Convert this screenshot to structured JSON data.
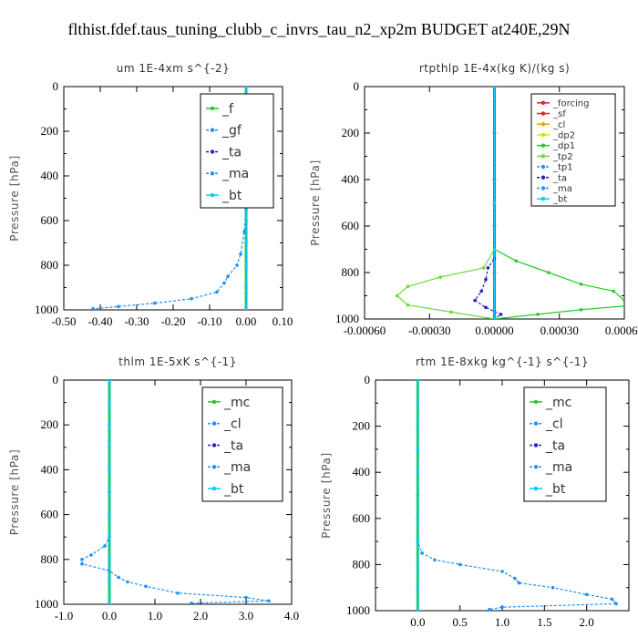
{
  "figure_title": "flthist.fdef.taus_tuning_clubb_c_invrs_tau_n2_xp2m  BUDGET at240E,29N",
  "colors": {
    "green": "#22cc22",
    "blue_dash": "#1e90ff",
    "navy": "#2222cc",
    "red": "#dd2222",
    "orange": "#ff9900",
    "yellow": "#dddd00",
    "cyan": "#00ccff",
    "light_green": "#66dd33"
  },
  "chart_data": [
    {
      "type": "line",
      "title": "um   1E-4xm s^{-2}",
      "ylabel": "Pressure [hPa]",
      "xlim": [
        -0.5,
        0.1
      ],
      "ylim": [
        1000,
        0
      ],
      "xticks": [
        "-0.50",
        "-0.40",
        "-0.30",
        "-0.20",
        "-0.10",
        "0.00",
        "0.10"
      ],
      "xtick_values": [
        -0.5,
        -0.4,
        -0.3,
        -0.2,
        -0.1,
        0.0,
        0.1
      ],
      "yticks": [
        "0",
        "200",
        "400",
        "600",
        "800",
        "1000"
      ],
      "ytick_values": [
        0,
        200,
        400,
        600,
        800,
        1000
      ],
      "legend": {
        "placement": "top-right",
        "font_size": 14,
        "entries": [
          "_f",
          "_gf",
          "_ta",
          "_ma",
          "_bt"
        ]
      },
      "series": [
        {
          "name": "_f",
          "color": "#22cc22",
          "style": "solid",
          "y": [
            0,
            100,
            200,
            300,
            400,
            500,
            600,
            700,
            800,
            900,
            1000
          ],
          "x": [
            0,
            0,
            0,
            0,
            0,
            0,
            0,
            0,
            0,
            0,
            0
          ]
        },
        {
          "name": "_gf",
          "color": "#1e90ff",
          "style": "dashed",
          "y": [
            0,
            400,
            550,
            650,
            750,
            800,
            850,
            880,
            920,
            950,
            970,
            985,
            995
          ],
          "x": [
            0,
            0,
            0,
            -0.005,
            -0.015,
            -0.025,
            -0.05,
            -0.06,
            -0.08,
            -0.15,
            -0.25,
            -0.35,
            -0.42
          ]
        },
        {
          "name": "_ta",
          "color": "#2222cc",
          "style": "dashed",
          "y": [
            0,
            500,
            1000
          ],
          "x": [
            0,
            0,
            0
          ]
        },
        {
          "name": "_ma",
          "color": "#1e90ff",
          "style": "dashed",
          "y": [
            0,
            500,
            1000
          ],
          "x": [
            0,
            0,
            0
          ]
        },
        {
          "name": "_bt",
          "color": "#00ccff",
          "style": "solid",
          "y": [
            0,
            100,
            200,
            300,
            400,
            500,
            600,
            700,
            800,
            900,
            1000
          ],
          "x": [
            0,
            0,
            0,
            0,
            0,
            0,
            0,
            0,
            0,
            0,
            0
          ]
        }
      ]
    },
    {
      "type": "line",
      "title": "rtpthlp   1E-4x(kg K)/(kg s)",
      "ylabel": "Pressure [hPa]",
      "xlim": [
        -0.0006,
        0.0006
      ],
      "ylim": [
        1000,
        0
      ],
      "xticks": [
        "-0.00060",
        "-0.00030",
        "0.00000",
        "0.00030",
        "0.00060"
      ],
      "xtick_values": [
        -0.0006,
        -0.0003,
        0.0,
        0.0003,
        0.0006
      ],
      "yticks": [
        "0",
        "200",
        "400",
        "600",
        "800",
        "1000"
      ],
      "ytick_values": [
        0,
        200,
        400,
        600,
        800,
        1000
      ],
      "legend": {
        "placement": "top-right",
        "font_size": 10,
        "entries": [
          "_forcing",
          "_sf",
          "_cl",
          "_dp2",
          "_dp1",
          "_tp2",
          "_tp1",
          "_ta",
          "_ma",
          "_bt"
        ]
      },
      "series": [
        {
          "name": "_forcing",
          "color": "#dd2222",
          "style": "solid",
          "y": [
            0,
            200,
            400,
            600,
            800,
            1000
          ],
          "x": [
            0,
            0,
            0,
            0,
            0,
            0
          ]
        },
        {
          "name": "_sf",
          "color": "#dd2222",
          "style": "solid",
          "y": [
            0,
            200,
            400,
            600,
            800,
            1000
          ],
          "x": [
            0,
            0,
            0,
            0,
            0,
            0
          ]
        },
        {
          "name": "_cl",
          "color": "#ff9900",
          "style": "solid",
          "y": [
            0,
            500,
            1000
          ],
          "x": [
            0,
            0,
            0
          ]
        },
        {
          "name": "_dp2",
          "color": "#dddd00",
          "style": "solid",
          "y": [
            0,
            500,
            1000
          ],
          "x": [
            0,
            0,
            0
          ]
        },
        {
          "name": "_dp1",
          "color": "#22cc22",
          "style": "solid",
          "y": [
            0,
            700,
            750,
            800,
            850,
            880,
            920,
            940,
            960,
            980,
            1000
          ],
          "x": [
            0,
            0,
            0.0001,
            0.00025,
            0.0004,
            0.00055,
            0.0006,
            0.00065,
            0.0004,
            0.0002,
            0
          ]
        },
        {
          "name": "_tp2",
          "color": "#66dd33",
          "style": "solid",
          "y": [
            0,
            700,
            780,
            820,
            860,
            900,
            940,
            970,
            1000
          ],
          "x": [
            0,
            0,
            -5e-05,
            -0.00025,
            -0.0004,
            -0.00045,
            -0.0004,
            -0.0002,
            0
          ]
        },
        {
          "name": "_tp1",
          "color": "#1e90ff",
          "style": "dashed",
          "y": [
            0,
            500,
            1000
          ],
          "x": [
            0,
            0,
            0
          ]
        },
        {
          "name": "_ta",
          "color": "#2222cc",
          "style": "dashed",
          "y": [
            0,
            740,
            780,
            830,
            880,
            920,
            950,
            980,
            1000
          ],
          "x": [
            0,
            0,
            -3e-05,
            -4e-05,
            -6e-05,
            -9e-05,
            -4e-05,
            3e-05,
            0
          ]
        },
        {
          "name": "_ma",
          "color": "#1e90ff",
          "style": "dashed",
          "y": [
            0,
            500,
            1000
          ],
          "x": [
            0,
            0,
            0
          ]
        },
        {
          "name": "_bt",
          "color": "#00ccff",
          "style": "solid",
          "y": [
            0,
            500,
            1000
          ],
          "x": [
            0,
            0,
            0
          ]
        }
      ]
    },
    {
      "type": "line",
      "title": "thlm   1E-5xK s^{-1}",
      "ylabel": "Pressure [hPa]",
      "xlim": [
        -1.0,
        4.0
      ],
      "ylim": [
        1000,
        0
      ],
      "xticks": [
        "-1.0",
        "0.0",
        "1.0",
        "2.0",
        "3.0",
        "4.0"
      ],
      "xtick_values": [
        -1.0,
        0.0,
        1.0,
        2.0,
        3.0,
        4.0
      ],
      "yticks": [
        "0",
        "200",
        "400",
        "600",
        "800",
        "1000"
      ],
      "ytick_values": [
        0,
        200,
        400,
        600,
        800,
        1000
      ],
      "legend": {
        "placement": "top-right",
        "font_size": 14,
        "entries": [
          "_mc",
          "_cl",
          "_ta",
          "_ma",
          "_bt"
        ]
      },
      "series": [
        {
          "name": "_mc",
          "color": "#22cc22",
          "style": "solid",
          "y": [
            0,
            100,
            200,
            300,
            400,
            500,
            600,
            700,
            800,
            900,
            1000
          ],
          "x": [
            0,
            0,
            0,
            0,
            0,
            0,
            0,
            0,
            0,
            0,
            0
          ]
        },
        {
          "name": "_cl",
          "color": "#1e90ff",
          "style": "dashed",
          "y": [
            0,
            700,
            740,
            780,
            800,
            820,
            850,
            880,
            900,
            920,
            950,
            970,
            985,
            995
          ],
          "x": [
            0,
            0,
            -0.1,
            -0.4,
            -0.6,
            -0.6,
            0,
            0.2,
            0.4,
            0.8,
            1.5,
            3.0,
            3.5,
            1.8
          ]
        },
        {
          "name": "_ta",
          "color": "#2222cc",
          "style": "dashed",
          "y": [
            0,
            500,
            1000
          ],
          "x": [
            0,
            0,
            0
          ]
        },
        {
          "name": "_ma",
          "color": "#1e90ff",
          "style": "dashed",
          "y": [
            0,
            500,
            1000
          ],
          "x": [
            0,
            0,
            0
          ]
        },
        {
          "name": "_bt",
          "color": "#00ccff",
          "style": "solid",
          "y": [
            0,
            100,
            200,
            300,
            400,
            500,
            600,
            700,
            800,
            900,
            1000
          ],
          "x": [
            0,
            0,
            0,
            0,
            0,
            0,
            0,
            0,
            0,
            0,
            0
          ]
        }
      ]
    },
    {
      "type": "line",
      "title": "rtm   1E-8xkg kg^{-1} s^{-1}",
      "ylabel": "Pressure [hPa]",
      "xlim": [
        -0.5,
        2.5
      ],
      "ylim": [
        1000,
        0
      ],
      "xticks": [
        "0.0",
        "0.5",
        "1.0",
        "1.5",
        "2.0"
      ],
      "xtick_values": [
        0.0,
        0.5,
        1.0,
        1.5,
        2.0
      ],
      "yticks": [
        "0",
        "200",
        "400",
        "600",
        "800",
        "1000"
      ],
      "ytick_values": [
        0,
        200,
        400,
        600,
        800,
        1000
      ],
      "legend": {
        "placement": "top-right",
        "font_size": 14,
        "entries": [
          "_mc",
          "_cl",
          "_ta",
          "_ma",
          "_bt"
        ]
      },
      "series": [
        {
          "name": "_mc",
          "color": "#22cc22",
          "style": "solid",
          "y": [
            0,
            100,
            200,
            300,
            400,
            500,
            600,
            700,
            800,
            900,
            1000
          ],
          "x": [
            0,
            0,
            0,
            0,
            0,
            0,
            0,
            0,
            0,
            0,
            0
          ]
        },
        {
          "name": "_cl",
          "color": "#1e90ff",
          "style": "dashed",
          "y": [
            0,
            700,
            750,
            780,
            800,
            830,
            860,
            880,
            900,
            930,
            950,
            970,
            985,
            995
          ],
          "x": [
            0,
            0,
            0.05,
            0.2,
            0.5,
            1.0,
            1.15,
            1.2,
            1.6,
            2.0,
            2.3,
            2.35,
            1.0,
            0.85
          ]
        },
        {
          "name": "_ta",
          "color": "#2222cc",
          "style": "dashed",
          "y": [
            0,
            500,
            1000
          ],
          "x": [
            0,
            0,
            0
          ]
        },
        {
          "name": "_ma",
          "color": "#1e90ff",
          "style": "dashed",
          "y": [
            0,
            500,
            1000
          ],
          "x": [
            0,
            0,
            0
          ]
        },
        {
          "name": "_bt",
          "color": "#00ccff",
          "style": "solid",
          "y": [
            0,
            100,
            200,
            300,
            400,
            500,
            600,
            700,
            800,
            900,
            1000
          ],
          "x": [
            0,
            0,
            0,
            0,
            0,
            0,
            0,
            0,
            0,
            0,
            0
          ]
        }
      ]
    }
  ]
}
